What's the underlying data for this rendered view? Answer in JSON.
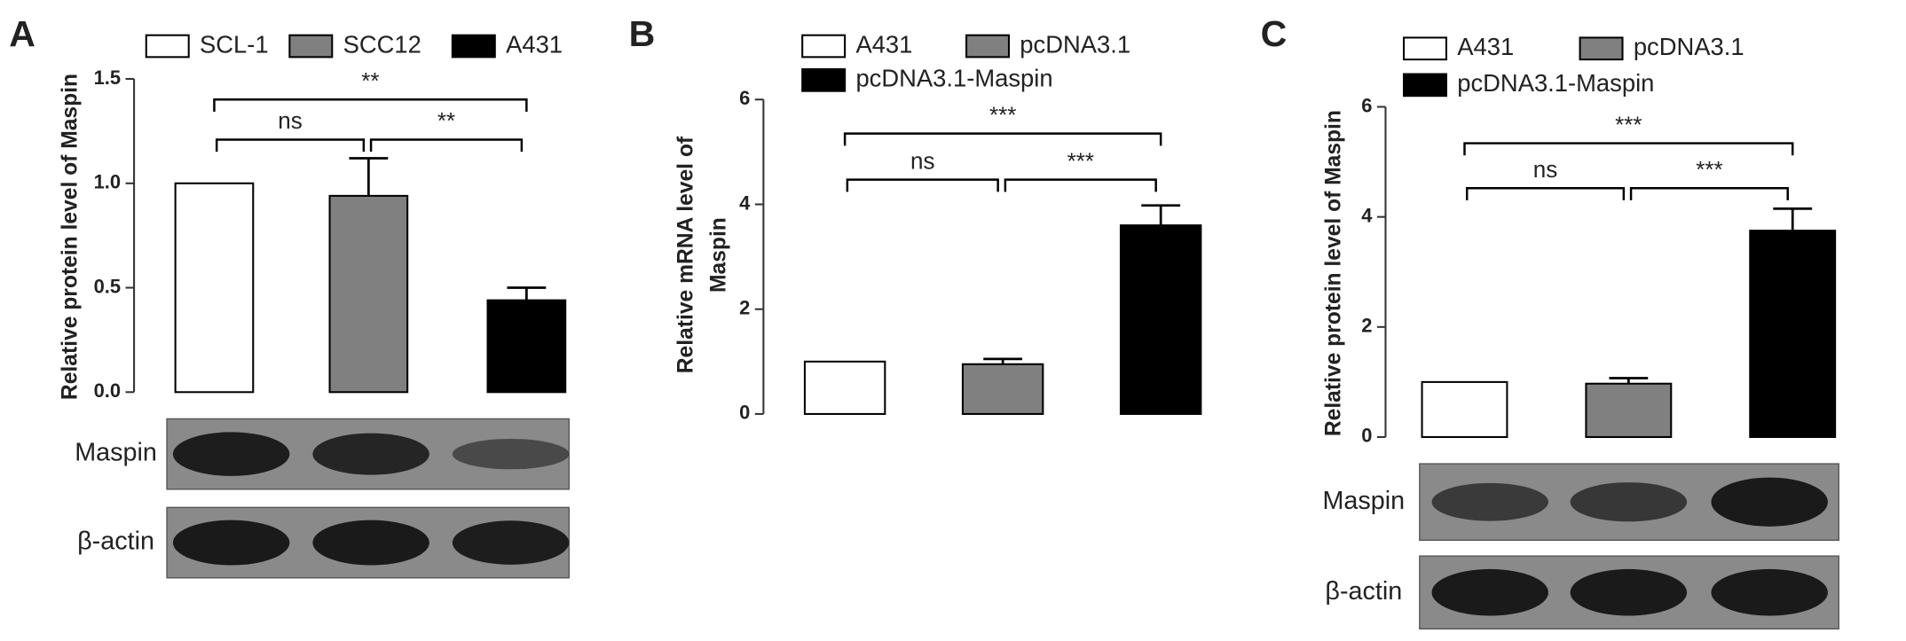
{
  "chart_data": [
    {
      "type": "bar",
      "panel_label": "A",
      "y_label": [
        "Relative protein level of Maspin"
      ],
      "categories": [
        "SCL-1",
        "SCC12",
        "A431"
      ],
      "colors": [
        "#ffffff",
        "#808080",
        "#000000"
      ],
      "values": [
        1.0,
        0.94,
        0.44
      ],
      "errors": [
        null,
        0.18,
        0.06
      ],
      "ylim": [
        0,
        1.5
      ],
      "yticks": [
        {
          "value": 0,
          "label": "0.0"
        },
        {
          "value": 0.5,
          "label": "0.5"
        },
        {
          "value": 1,
          "label": "1.0"
        },
        {
          "value": 1.5,
          "label": "1.5"
        }
      ],
      "comparisons": [
        {
          "pair": [
            0,
            1
          ],
          "label": "ns"
        },
        {
          "pair": [
            1,
            2
          ],
          "label": "**"
        },
        {
          "pair": [
            0,
            2
          ],
          "label": "**"
        }
      ],
      "blot_rows": [
        "Maspin",
        "β-actin"
      ]
    },
    {
      "type": "bar",
      "panel_label": "B",
      "y_label": [
        "Relative mRNA level of",
        "Maspin"
      ],
      "categories": [
        "A431",
        "pcDNA3.1",
        "pcDNA3.1-Maspin"
      ],
      "colors": [
        "#ffffff",
        "#808080",
        "#000000"
      ],
      "values": [
        1.0,
        0.95,
        3.6
      ],
      "errors": [
        null,
        0.1,
        0.38
      ],
      "ylim": [
        0,
        6
      ],
      "yticks": [
        0,
        2,
        4,
        6
      ],
      "comparisons": [
        {
          "pair": [
            0,
            1
          ],
          "label": "ns"
        },
        {
          "pair": [
            1,
            2
          ],
          "label": "***"
        },
        {
          "pair": [
            0,
            2
          ],
          "label": "***"
        }
      ],
      "blot_rows": []
    },
    {
      "type": "bar",
      "panel_label": "C",
      "y_label": [
        "Relative protein level of Maspin"
      ],
      "categories": [
        "A431",
        "pcDNA3.1",
        "pcDNA3.1-Maspin"
      ],
      "colors": [
        "#ffffff",
        "#808080",
        "#000000"
      ],
      "values": [
        1.0,
        0.97,
        3.75
      ],
      "errors": [
        null,
        0.1,
        0.4
      ],
      "ylim": [
        0,
        6
      ],
      "yticks": [
        0,
        2,
        4,
        6
      ],
      "comparisons": [
        {
          "pair": [
            0,
            1
          ],
          "label": "ns"
        },
        {
          "pair": [
            1,
            2
          ],
          "label": "***"
        },
        {
          "pair": [
            0,
            2
          ],
          "label": "***"
        }
      ],
      "blot_rows": [
        "Maspin",
        "β-actin"
      ]
    }
  ]
}
